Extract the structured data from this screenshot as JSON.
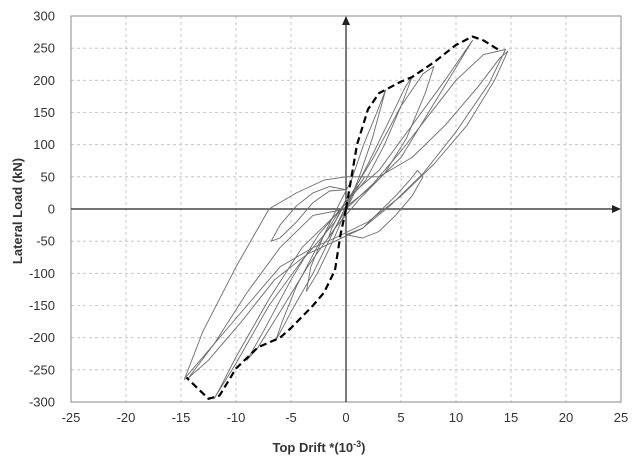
{
  "chart_data": {
    "type": "line",
    "title": "",
    "xlabel": "Top Drift *(10",
    "xlabel_sup": "-3",
    "xlabel_suffix": ")",
    "ylabel": "Lateral  Load (kN)",
    "xlim": [
      -25,
      25
    ],
    "ylim": [
      -300,
      300
    ],
    "x_ticks": [
      -25,
      -20,
      -15,
      -10,
      -5,
      0,
      5,
      10,
      15,
      20,
      25
    ],
    "y_ticks": [
      300,
      250,
      200,
      150,
      100,
      50,
      0,
      -50,
      -100,
      -150,
      -200,
      -250,
      -300
    ],
    "grid": true,
    "legend": "none",
    "colors": {
      "loops": "#6b6b6b",
      "envelope": "#000000",
      "grid": "#bdbdbd",
      "axes": "#222222"
    },
    "series": [
      {
        "style": "thin-solid",
        "x": [
          0,
          0.4,
          0.8,
          1.3,
          1.7,
          1.4,
          0.9,
          0.3,
          -0.3,
          -0.8,
          -1.3,
          -1.6,
          -1.2,
          -0.6,
          0
        ],
        "y": [
          0,
          12,
          26,
          40,
          50,
          42,
          32,
          18,
          2,
          -14,
          -30,
          -45,
          -35,
          -18,
          0
        ]
      },
      {
        "style": "thin-solid",
        "x": [
          0,
          1.2,
          2.4,
          3.2,
          3.6,
          2.8,
          1.6,
          0.5,
          -0.7,
          -2,
          -3.2,
          -3.6,
          -2.6,
          -1.2,
          0
        ],
        "y": [
          -2,
          50,
          110,
          160,
          185,
          150,
          100,
          45,
          5,
          -40,
          -90,
          -128,
          -100,
          -50,
          -2
        ]
      },
      {
        "style": "thin-solid",
        "x": [
          0,
          2,
          4,
          5.4,
          6,
          5,
          3.5,
          1.8,
          -0.5,
          -2.5,
          -4.5,
          -5.8,
          -6.4,
          -5,
          -3,
          -1,
          0
        ],
        "y": [
          5,
          70,
          140,
          190,
          205,
          160,
          100,
          45,
          0,
          -55,
          -120,
          -175,
          -205,
          -160,
          -100,
          -30,
          5
        ]
      },
      {
        "style": "thin-solid",
        "x": [
          0,
          2.5,
          5,
          7,
          8,
          7.2,
          5.5,
          3.5,
          1.2,
          -1,
          -3.5,
          -6,
          -8,
          -9,
          -7.5,
          -5,
          -2.5,
          0
        ],
        "y": [
          10,
          80,
          160,
          210,
          222,
          180,
          110,
          55,
          15,
          -30,
          -90,
          -160,
          -215,
          -235,
          -190,
          -110,
          -40,
          10
        ]
      },
      {
        "style": "thin-solid",
        "x": [
          0,
          3,
          6,
          9,
          11,
          11.5,
          10,
          7.5,
          5,
          2,
          -1,
          -4,
          -7,
          -10,
          -11.5,
          -12,
          -10,
          -7,
          -4,
          -1,
          0
        ],
        "y": [
          15,
          60,
          130,
          200,
          250,
          262,
          220,
          150,
          80,
          30,
          -10,
          -60,
          -140,
          -230,
          -280,
          -295,
          -240,
          -150,
          -80,
          -20,
          15
        ]
      },
      {
        "style": "thin-solid",
        "x": [
          0,
          3,
          6,
          9,
          12,
          14,
          14.7,
          13.5,
          11,
          8,
          5,
          2,
          -1,
          -3,
          -6,
          -9,
          -12,
          -14.5,
          -14.7,
          -13,
          -10,
          -7,
          -4.5,
          -2,
          0
        ],
        "y": [
          50,
          50,
          80,
          130,
          190,
          235,
          245,
          200,
          130,
          70,
          20,
          -20,
          -45,
          -60,
          -90,
          -150,
          -210,
          -260,
          -265,
          -190,
          -90,
          0,
          25,
          45,
          50
        ]
      },
      {
        "style": "thin-solid",
        "x": [
          0,
          2.5,
          5,
          7.5,
          10,
          12.5,
          14.5,
          13,
          10,
          7,
          4,
          1.5,
          -1,
          -3.5,
          -6.5,
          -9.5,
          -12.5,
          -14.3,
          -12,
          -9,
          -6,
          -3,
          0
        ],
        "y": [
          0,
          40,
          90,
          145,
          200,
          240,
          248,
          195,
          120,
          55,
          5,
          -30,
          -50,
          -70,
          -110,
          -175,
          -235,
          -262,
          -210,
          -130,
          -60,
          -10,
          0
        ]
      },
      {
        "style": "thin-solid",
        "x": [
          0,
          1.5,
          3,
          4.5,
          5.8,
          6.5,
          7,
          6,
          4.5,
          3,
          1.5,
          0
        ],
        "y": [
          -40,
          -30,
          -5,
          20,
          45,
          60,
          50,
          20,
          -10,
          -35,
          -45,
          -40
        ]
      },
      {
        "style": "thin-solid",
        "x": [
          0,
          -1.5,
          -3,
          -4.5,
          -6,
          -6.8,
          -6,
          -4.5,
          -3,
          -1.5,
          0
        ],
        "y": [
          30,
          35,
          25,
          5,
          -25,
          -50,
          -45,
          -20,
          10,
          28,
          30
        ]
      },
      {
        "style": "envelope-dashed",
        "x": [
          0,
          0.4,
          1,
          2,
          3,
          5,
          6,
          8,
          10,
          11.5,
          12.5,
          14
        ],
        "y": [
          0,
          40,
          100,
          155,
          180,
          198,
          205,
          228,
          255,
          268,
          262,
          246
        ],
        "x_neg": [
          0,
          -0.5,
          -1,
          -2,
          -3,
          -5,
          -6,
          -8,
          -10,
          -11.5,
          -12.5,
          -14.5
        ],
        "y_neg": [
          0,
          -40,
          -95,
          -130,
          -150,
          -185,
          -200,
          -215,
          -248,
          -290,
          -295,
          -262
        ]
      }
    ]
  }
}
